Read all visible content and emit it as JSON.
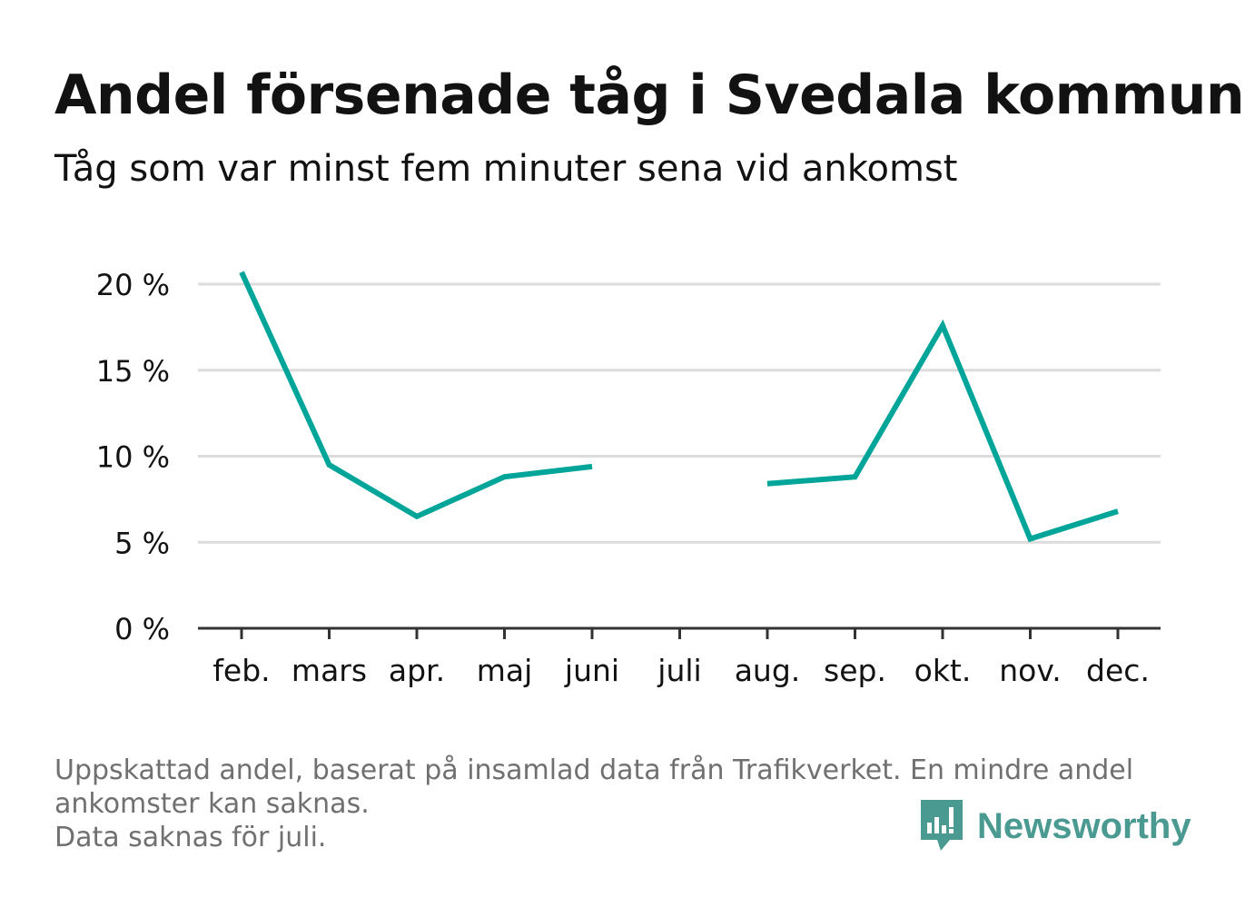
{
  "header": {
    "title": "Andel försenade tåg i Svedala kommun",
    "subtitle": "Tåg som var minst fem minuter sena vid ankomst"
  },
  "chart_data": {
    "type": "line",
    "categories": [
      "feb.",
      "mars",
      "apr.",
      "maj",
      "juni",
      "juli",
      "aug.",
      "sep.",
      "okt.",
      "nov.",
      "dec."
    ],
    "series": [
      {
        "values": [
          20.7,
          9.5,
          6.5,
          8.8,
          9.4,
          null,
          8.4,
          8.8,
          17.6,
          5.2,
          6.8
        ]
      }
    ],
    "y_ticks": [
      0,
      5,
      10,
      15,
      20
    ],
    "y_tick_labels": [
      "0 %",
      "5 %",
      "10 %",
      "15 %",
      "20 %"
    ],
    "ylim": [
      0,
      20
    ],
    "xlabel": "",
    "ylabel": "",
    "grid": true,
    "line_color": "#00a59a"
  },
  "footer": {
    "notes": [
      "Uppskattad andel, baserat på insamlad data från Trafikverket. En mindre andel",
      "ankomster kan saknas.",
      "Data saknas för juli."
    ],
    "brand": "Newsworthy",
    "brand_icon": "bar-chart-speech-bubble-icon",
    "brand_color": "#4b9a91"
  }
}
